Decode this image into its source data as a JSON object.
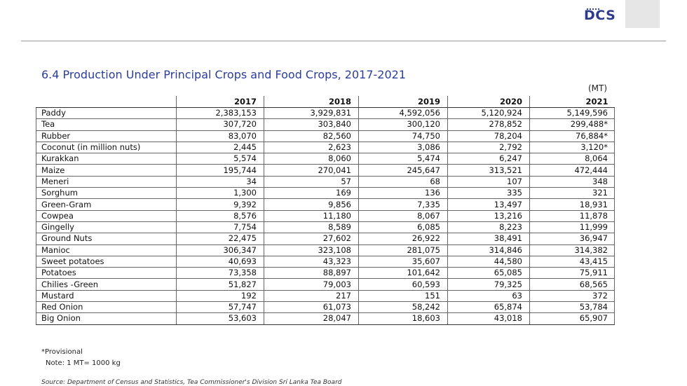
{
  "header": {
    "logo_text": "DCS",
    "brand_color": "#2e3a8c"
  },
  "title": "6.4  Production Under Principal Crops and Food Crops, 2017-2021",
  "unit": "(MT)",
  "table": {
    "columns": [
      "",
      "2017",
      "2018",
      "2019",
      "2020",
      "2021"
    ],
    "rows": [
      [
        "Paddy",
        "2,383,153",
        "3,929,831",
        "4,592,056",
        "5,120,924",
        "5,149,596"
      ],
      [
        "Tea",
        "307,720",
        "303,840",
        "300,120",
        "278,852",
        "299,488*"
      ],
      [
        "Rubber",
        "83,070",
        "82,560",
        "74,750",
        "78,204",
        "76,884*"
      ],
      [
        "Coconut (in million nuts)",
        "2,445",
        "2,623",
        "3,086",
        "2,792",
        "3,120*"
      ],
      [
        "Kurakkan",
        "5,574",
        "8,060",
        "5,474",
        "6,247",
        "8,064"
      ],
      [
        "Maize",
        "195,744",
        "270,041",
        "245,647",
        "313,521",
        "472,444"
      ],
      [
        "Meneri",
        "34",
        "57",
        "68",
        "107",
        "348"
      ],
      [
        "Sorghum",
        "1,300",
        "169",
        "136",
        "335",
        "321"
      ],
      [
        "Green-Gram",
        "9,392",
        "9,856",
        "7,335",
        "13,497",
        "18,931"
      ],
      [
        "Cowpea",
        "8,576",
        "11,180",
        "8,067",
        "13,216",
        "11,878"
      ],
      [
        "Gingelly",
        "7,754",
        "8,589",
        "6,085",
        "8,223",
        "11,999"
      ],
      [
        "Ground Nuts",
        "22,475",
        "27,602",
        "26,922",
        "38,491",
        "36,947"
      ],
      [
        "Manioc",
        "306,347",
        "323,108",
        "281,075",
        "314,846",
        "314,382"
      ],
      [
        "Sweet potatoes",
        "40,693",
        "43,323",
        "35,607",
        "44,580",
        "43,415"
      ],
      [
        "Potatoes",
        "73,358",
        "88,897",
        "101,642",
        "65,085",
        "75,911"
      ],
      [
        "Chilies -Green",
        "51,827",
        "79,003",
        "60,593",
        "79,325",
        "68,565"
      ],
      [
        "Mustard",
        "192",
        "217",
        "151",
        "63",
        "372"
      ],
      [
        "Red Onion",
        "57,747",
        "61,073",
        "58,242",
        "65,874",
        "53,784"
      ],
      [
        "Big Onion",
        "53,603",
        "28,047",
        "18,603",
        "43,018",
        "65,907"
      ]
    ]
  },
  "footnote": "*Provisional",
  "note": "Note: 1 MT= 1000 kg",
  "source": "Source:  Department of Census and Statistics, Tea Commissioner's Division Sri Lanka Tea Board"
}
